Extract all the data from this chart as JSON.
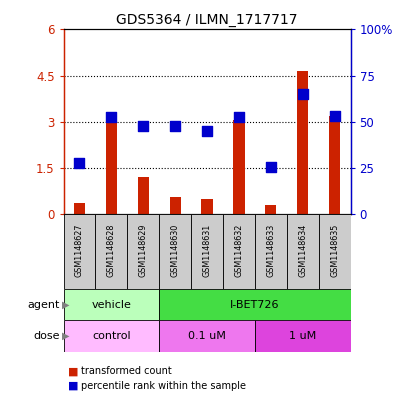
{
  "title": "GDS5364 / ILMN_1717717",
  "samples": [
    "GSM1148627",
    "GSM1148628",
    "GSM1148629",
    "GSM1148630",
    "GSM1148631",
    "GSM1148632",
    "GSM1148633",
    "GSM1148634",
    "GSM1148635"
  ],
  "bar_values": [
    0.35,
    3.0,
    1.2,
    0.55,
    0.5,
    3.05,
    0.3,
    4.65,
    3.2
  ],
  "dot_values_pct": [
    27.5,
    52.5,
    47.5,
    47.5,
    45.0,
    52.5,
    25.8,
    65.0,
    53.3
  ],
  "bar_color": "#cc2200",
  "dot_color": "#0000cc",
  "ylim_left": [
    0,
    6
  ],
  "ylim_right": [
    0,
    100
  ],
  "yticks_left": [
    0,
    1.5,
    3.0,
    4.5,
    6.0
  ],
  "ytick_labels_left": [
    "0",
    "1.5",
    "3",
    "4.5",
    "6"
  ],
  "yticks_right": [
    0,
    25,
    50,
    75,
    100
  ],
  "ytick_labels_right": [
    "0",
    "25",
    "50",
    "75",
    "100%"
  ],
  "hlines": [
    1.5,
    3.0,
    4.5
  ],
  "agent_groups": [
    {
      "label": "vehicle",
      "start": 0,
      "end": 3,
      "color": "#bbffbb"
    },
    {
      "label": "I-BET726",
      "start": 3,
      "end": 9,
      "color": "#44dd44"
    }
  ],
  "dose_groups": [
    {
      "label": "control",
      "start": 0,
      "end": 3,
      "color": "#ffbbff"
    },
    {
      "label": "0.1 uM",
      "start": 3,
      "end": 6,
      "color": "#ee77ee"
    },
    {
      "label": "1 uM",
      "start": 6,
      "end": 9,
      "color": "#dd44dd"
    }
  ],
  "legend_items": [
    {
      "label": "transformed count",
      "color": "#cc2200"
    },
    {
      "label": "percentile rank within the sample",
      "color": "#0000cc"
    }
  ],
  "bar_width": 0.35,
  "dot_size": 55,
  "sample_box_color": "#cccccc"
}
